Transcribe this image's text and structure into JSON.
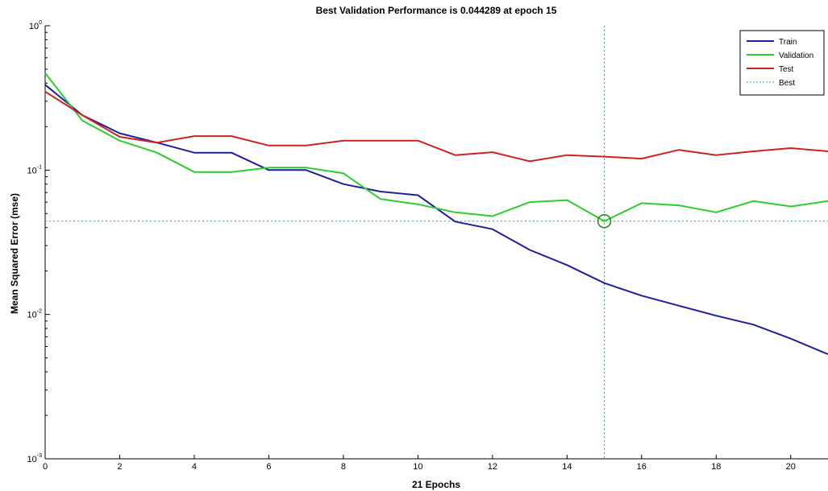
{
  "chart_data": {
    "type": "line",
    "title": "Best Validation Performance is 0.044289 at epoch 15",
    "xlabel": "21 Epochs",
    "ylabel": "Mean Squared Error  (mse)",
    "x_scale": "linear",
    "y_scale": "log",
    "xlim": [
      0,
      21
    ],
    "ylim": [
      0.001,
      1
    ],
    "x_ticks": [
      0,
      2,
      4,
      6,
      8,
      10,
      12,
      14,
      16,
      18,
      20
    ],
    "y_ticks": [
      {
        "value": 1,
        "base": "10",
        "exp": "0"
      },
      {
        "value": 0.1,
        "base": "10",
        "exp": "-1"
      },
      {
        "value": 0.01,
        "base": "10",
        "exp": "-2"
      },
      {
        "value": 0.001,
        "base": "10",
        "exp": "-3"
      }
    ],
    "x": [
      0,
      1,
      2,
      3,
      4,
      5,
      6,
      7,
      8,
      9,
      10,
      11,
      12,
      13,
      14,
      15,
      16,
      17,
      18,
      19,
      20,
      21
    ],
    "series": [
      {
        "name": "Train",
        "color": "#1f1f9e",
        "style": "solid",
        "values": [
          0.39,
          0.24,
          0.18,
          0.155,
          0.132,
          0.132,
          0.1,
          0.1,
          0.08,
          0.071,
          0.067,
          0.044,
          0.039,
          0.028,
          0.022,
          0.0165,
          0.0135,
          0.0115,
          0.0098,
          0.0085,
          0.0068,
          0.0053
        ]
      },
      {
        "name": "Validation",
        "color": "#2ecc2e",
        "style": "solid",
        "values": [
          0.47,
          0.22,
          0.16,
          0.132,
          0.097,
          0.097,
          0.104,
          0.104,
          0.095,
          0.063,
          0.058,
          0.051,
          0.048,
          0.06,
          0.062,
          0.044289,
          0.059,
          0.057,
          0.051,
          0.061,
          0.056,
          0.061
        ]
      },
      {
        "name": "Test",
        "color": "#cc2222",
        "style": "solid",
        "values": [
          0.35,
          0.24,
          0.17,
          0.155,
          0.172,
          0.172,
          0.148,
          0.148,
          0.16,
          0.16,
          0.16,
          0.127,
          0.133,
          0.115,
          0.127,
          0.124,
          0.12,
          0.138,
          0.127,
          0.135,
          0.142,
          0.135
        ]
      }
    ],
    "best": {
      "name": "Best",
      "epoch": 15,
      "value": 0.044289,
      "color": "#3c9a9a",
      "style": "dotted"
    },
    "legend": {
      "position": "top-right",
      "items": [
        "Train",
        "Validation",
        "Test",
        "Best"
      ]
    },
    "grid": false
  }
}
